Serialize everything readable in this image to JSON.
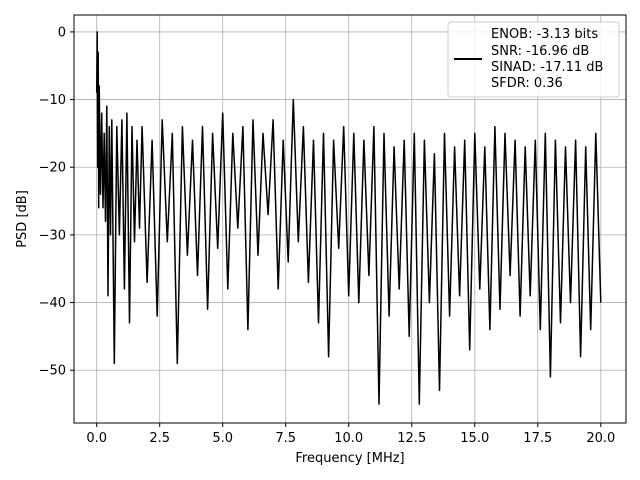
{
  "chart_data": {
    "type": "line",
    "title": "",
    "xlabel": "Frequency [MHz]",
    "ylabel": "PSD [dB]",
    "xlim": [
      -0.9,
      21.0
    ],
    "ylim": [
      -57.8,
      2.5
    ],
    "xticks": [
      0.0,
      2.5,
      5.0,
      7.5,
      10.0,
      12.5,
      15.0,
      17.5,
      20.0
    ],
    "xtick_labels": [
      "0.0",
      "2.5",
      "5.0",
      "7.5",
      "10.0",
      "12.5",
      "15.0",
      "17.5",
      "20.0"
    ],
    "yticks": [
      0,
      -10,
      -20,
      -30,
      -40,
      -50
    ],
    "ytick_labels": [
      "0",
      "−10",
      "−20",
      "−30",
      "−40",
      "−50"
    ],
    "grid": true,
    "legend_position": "top-right",
    "legend_lines": [
      "ENOB: -3.13 bits",
      "SNR: -16.96 dB",
      "SINAD: -17.11 dB",
      "SFDR: 0.36"
    ],
    "line_color": "#000000",
    "series": [
      {
        "name": "ENOB: -3.13 bits",
        "x": [
          0.0,
          0.02,
          0.04,
          0.06,
          0.08,
          0.1,
          0.15,
          0.2,
          0.25,
          0.3,
          0.35,
          0.4,
          0.45,
          0.5,
          0.55,
          0.6,
          0.7,
          0.8,
          0.9,
          1.0,
          1.1,
          1.2,
          1.3,
          1.4,
          1.5,
          1.6,
          1.7,
          1.8,
          2.0,
          2.2,
          2.4,
          2.6,
          2.8,
          3.0,
          3.2,
          3.4,
          3.6,
          3.8,
          4.0,
          4.2,
          4.4,
          4.6,
          4.8,
          5.0,
          5.2,
          5.4,
          5.6,
          5.8,
          6.0,
          6.2,
          6.4,
          6.6,
          6.8,
          7.0,
          7.2,
          7.4,
          7.6,
          7.8,
          8.0,
          8.2,
          8.4,
          8.6,
          8.8,
          9.0,
          9.2,
          9.4,
          9.6,
          9.8,
          10.0,
          10.2,
          10.4,
          10.6,
          10.8,
          11.0,
          11.2,
          11.4,
          11.6,
          11.8,
          12.0,
          12.2,
          12.4,
          12.6,
          12.8,
          13.0,
          13.2,
          13.4,
          13.6,
          13.8,
          14.0,
          14.2,
          14.4,
          14.6,
          14.8,
          15.0,
          15.2,
          15.4,
          15.6,
          15.8,
          16.0,
          16.2,
          16.4,
          16.6,
          16.8,
          17.0,
          17.2,
          17.4,
          17.6,
          17.8,
          18.0,
          18.2,
          18.4,
          18.6,
          18.8,
          19.0,
          19.2,
          19.4,
          19.6,
          19.8,
          20.0
        ],
        "values": [
          -9,
          0,
          -20,
          -3,
          -26,
          -8,
          -24,
          -12,
          -26,
          -15,
          -28,
          -11,
          -39,
          -14,
          -30,
          -13,
          -49,
          -14,
          -30,
          -13,
          -38,
          -12,
          -43,
          -14,
          -31,
          -16,
          -29,
          -14,
          -37,
          -16,
          -42,
          -13,
          -31,
          -15,
          -49,
          -14,
          -33,
          -16,
          -36,
          -14,
          -41,
          -15,
          -32,
          -12,
          -38,
          -15,
          -29,
          -14,
          -44,
          -13,
          -33,
          -15,
          -27,
          -13,
          -38,
          -16,
          -34,
          -10,
          -31,
          -14,
          -37,
          -16,
          -43,
          -15,
          -48,
          -16,
          -32,
          -14,
          -39,
          -15,
          -40,
          -16,
          -36,
          -14,
          -55,
          -15,
          -42,
          -17,
          -38,
          -16,
          -45,
          -15,
          -55,
          -16,
          -40,
          -18,
          -53,
          -15,
          -42,
          -17,
          -39,
          -16,
          -47,
          -15,
          -38,
          -17,
          -44,
          -14,
          -41,
          -15,
          -36,
          -16,
          -42,
          -17,
          -39,
          -16,
          -44,
          -15,
          -51,
          -16,
          -43,
          -17,
          -40,
          -16,
          -48,
          -17,
          -44,
          -15,
          -40
        ]
      }
    ]
  }
}
